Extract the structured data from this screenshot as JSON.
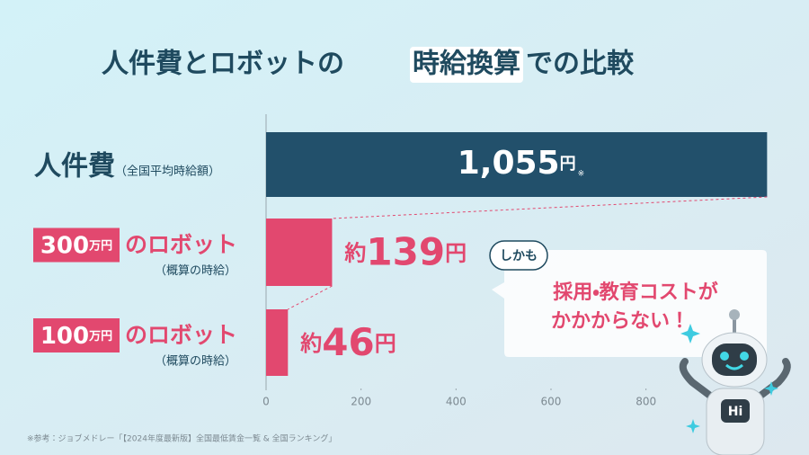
{
  "chart_data": {
    "type": "bar",
    "orientation": "horizontal",
    "title": {
      "lead": "人件費とロボットの",
      "highlight": "時給換算",
      "tail": "での比較"
    },
    "categories": [
      {
        "label": "人件費",
        "note": "（全国平均時給額）"
      },
      {
        "badge": "300万円",
        "label": "のロボット",
        "note": "（概算の時給）"
      },
      {
        "badge": "100万円",
        "label": "のロボット",
        "note": "（概算の時給）"
      }
    ],
    "values": [
      1055,
      139,
      46
    ],
    "value_labels": [
      "1,055円",
      "約139円",
      "約46円"
    ],
    "value_label_note": "※",
    "colors": [
      "#22506b",
      "#e2486f",
      "#e2486f"
    ],
    "xlim": [
      0,
      1060
    ],
    "xticks": [
      0,
      200,
      400,
      600,
      800
    ],
    "callout": {
      "tag": "しかも",
      "lines": [
        "採用・教育コストが",
        "かかからない！"
      ]
    },
    "robot_badge": "Hi",
    "footnote": "※参考：ジョブメドレー「【2024年度最新版】全国最低賃金一覧 & 全国ランキング」"
  }
}
